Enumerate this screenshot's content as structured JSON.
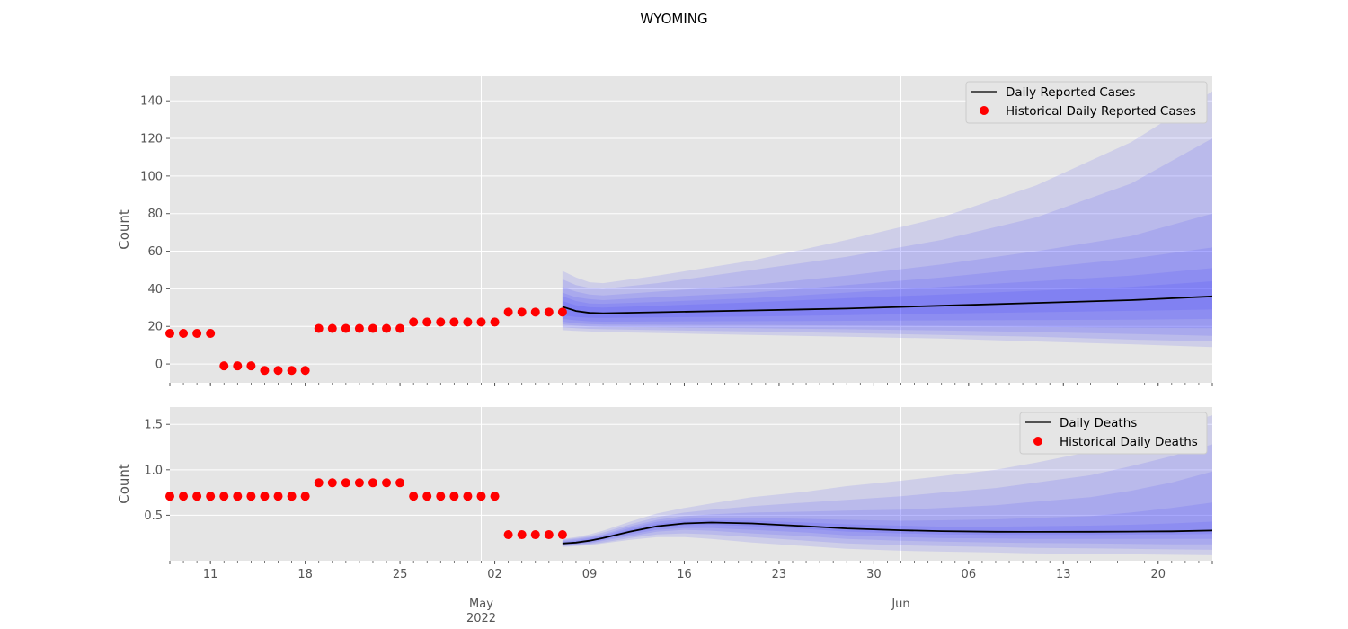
{
  "figure": {
    "title": "WYOMING"
  },
  "x_axis": {
    "start": "2022-04-08",
    "end": "2022-06-24",
    "major_ticks": [
      {
        "date": "2022-05-01",
        "label": "May",
        "sublabel": "2022"
      },
      {
        "date": "2022-06-01",
        "label": "Jun",
        "sublabel": ""
      }
    ],
    "minor_labeled_ticks": [
      {
        "date": "2022-04-11",
        "label": "11"
      },
      {
        "date": "2022-04-18",
        "label": "18"
      },
      {
        "date": "2022-04-25",
        "label": "25"
      },
      {
        "date": "2022-05-02",
        "label": "02"
      },
      {
        "date": "2022-05-09",
        "label": "09"
      },
      {
        "date": "2022-05-16",
        "label": "16"
      },
      {
        "date": "2022-05-23",
        "label": "23"
      },
      {
        "date": "2022-05-30",
        "label": "30"
      },
      {
        "date": "2022-06-06",
        "label": "06"
      },
      {
        "date": "2022-06-13",
        "label": "13"
      },
      {
        "date": "2022-06-20",
        "label": "20"
      }
    ]
  },
  "colors": {
    "panel_bg": "#e5e5e5",
    "grid": "#ffffff",
    "history": "#ff0000",
    "median": "#000000",
    "band": "#3333ff"
  },
  "chart_data": [
    {
      "type": "line",
      "ylabel": "Count",
      "ylim": [
        -10,
        153
      ],
      "yticks": [
        0,
        20,
        40,
        60,
        80,
        100,
        120,
        140
      ],
      "grid": true,
      "legend_placement": "top-right",
      "legend": [
        "Daily Reported Cases",
        "Historical Daily Reported Cases"
      ],
      "historical": {
        "name": "Historical Daily Reported Cases",
        "start": "2022-04-08",
        "values": [
          16.3,
          16.3,
          16.3,
          16.3,
          -1,
          -1,
          -1,
          -3.4,
          -3.4,
          -3.4,
          -3.4,
          18.9,
          18.9,
          18.9,
          18.9,
          18.9,
          18.9,
          18.9,
          22.3,
          22.3,
          22.3,
          22.3,
          22.3,
          22.3,
          22.3,
          27.6,
          27.6,
          27.6,
          27.6,
          27.6
        ]
      },
      "forecast": {
        "name": "Daily Reported Cases",
        "x": [
          "2022-05-07",
          "2022-05-08",
          "2022-05-09",
          "2022-05-10",
          "2022-05-14",
          "2022-05-21",
          "2022-05-28",
          "2022-06-04",
          "2022-06-11",
          "2022-06-18",
          "2022-06-24"
        ],
        "median": [
          30.5,
          28.2,
          27.2,
          27,
          27.5,
          28.5,
          29.5,
          31,
          32.5,
          34,
          36
        ],
        "bands": [
          {
            "lower": [
              18,
              17.6,
              17.3,
              17,
              16.5,
              15.5,
              14.5,
              13.5,
              12,
              10.5,
              9
            ],
            "upper": [
              49.5,
              46,
              43.5,
              43,
              47,
              55,
              66,
              78,
              95,
              118,
              145
            ]
          },
          {
            "lower": [
              19.5,
              19,
              18.7,
              18.5,
              18,
              17.3,
              16.5,
              15.5,
              14.5,
              13,
              12
            ],
            "upper": [
              45,
              42,
              40.5,
              40,
              43,
              50,
              57,
              66,
              78,
              96,
              120
            ]
          },
          {
            "lower": [
              21,
              20.4,
              20,
              19.8,
              19.5,
              19,
              18.5,
              17.8,
              17,
              16,
              15
            ],
            "upper": [
              41,
              38.5,
              37,
              36.5,
              38.5,
              42,
              47,
              53,
              60,
              68,
              80
            ]
          },
          {
            "lower": [
              22.5,
              21.6,
              21.2,
              21,
              20.9,
              20.8,
              20.5,
              20.2,
              19.8,
              19.3,
              19
            ],
            "upper": [
              38,
              35.5,
              34.5,
              34,
              35.5,
              38,
              42,
              46,
              51,
              56,
              62
            ]
          },
          {
            "lower": [
              24,
              23.2,
              22.7,
              22.5,
              22.6,
              22.8,
              23,
              23.2,
              23.4,
              23.6,
              24
            ],
            "upper": [
              36,
              33.5,
              32.2,
              32,
              33,
              35,
              38,
              41,
              44,
              47,
              51
            ]
          },
          {
            "lower": [
              26,
              25,
              24.6,
              24.5,
              24.8,
              25.3,
              26,
              26.8,
              27.5,
              28.3,
              29
            ],
            "upper": [
              33.5,
              31.2,
              30.2,
              30,
              31,
              32.8,
              35,
              37,
              39,
              41,
              44
            ]
          }
        ]
      }
    },
    {
      "type": "line",
      "ylabel": "Count",
      "ylim": [
        0,
        1.69
      ],
      "yticks": [
        0.5,
        1.0,
        1.5
      ],
      "ytick_labels": [
        "0.5",
        "1.0",
        "1.5"
      ],
      "grid": true,
      "legend_placement": "top-right",
      "legend": [
        "Daily Deaths",
        "Historical Daily Deaths"
      ],
      "historical": {
        "name": "Historical Daily Deaths",
        "start": "2022-04-08",
        "values": [
          0.71,
          0.71,
          0.71,
          0.71,
          0.71,
          0.71,
          0.71,
          0.71,
          0.71,
          0.71,
          0.71,
          0.857,
          0.857,
          0.857,
          0.857,
          0.857,
          0.857,
          0.857,
          0.71,
          0.71,
          0.71,
          0.71,
          0.71,
          0.71,
          0.71,
          0.286,
          0.286,
          0.286,
          0.286,
          0.286
        ]
      },
      "forecast": {
        "name": "Daily Deaths",
        "x": [
          "2022-05-07",
          "2022-05-08",
          "2022-05-09",
          "2022-05-10",
          "2022-05-12",
          "2022-05-14",
          "2022-05-16",
          "2022-05-18",
          "2022-05-21",
          "2022-05-25",
          "2022-05-28",
          "2022-06-01",
          "2022-06-04",
          "2022-06-08",
          "2022-06-11",
          "2022-06-15",
          "2022-06-18",
          "2022-06-21",
          "2022-06-24"
        ],
        "median": [
          0.19,
          0.2,
          0.22,
          0.25,
          0.32,
          0.38,
          0.41,
          0.42,
          0.41,
          0.38,
          0.355,
          0.335,
          0.325,
          0.318,
          0.317,
          0.318,
          0.32,
          0.323,
          0.332
        ],
        "bands": [
          {
            "lower": [
              0.15,
              0.16,
              0.17,
              0.19,
              0.23,
              0.26,
              0.26,
              0.24,
              0.2,
              0.16,
              0.13,
              0.11,
              0.1,
              0.09,
              0.08,
              0.075,
              0.07,
              0.065,
              0.06
            ],
            "upper": [
              0.24,
              0.26,
              0.29,
              0.33,
              0.43,
              0.52,
              0.58,
              0.63,
              0.7,
              0.76,
              0.82,
              0.88,
              0.93,
              1,
              1.08,
              1.2,
              1.33,
              1.47,
              1.6
            ]
          },
          {
            "lower": [
              0.16,
              0.17,
              0.18,
              0.2,
              0.25,
              0.29,
              0.3,
              0.29,
              0.26,
              0.22,
              0.19,
              0.17,
              0.16,
              0.15,
              0.14,
              0.135,
              0.13,
              0.125,
              0.12
            ],
            "upper": [
              0.23,
              0.25,
              0.27,
              0.31,
              0.4,
              0.48,
              0.53,
              0.56,
              0.6,
              0.64,
              0.67,
              0.71,
              0.75,
              0.8,
              0.86,
              0.94,
              1.04,
              1.15,
              1.28
            ]
          },
          {
            "lower": [
              0.17,
              0.18,
              0.19,
              0.22,
              0.27,
              0.32,
              0.34,
              0.33,
              0.3,
              0.27,
              0.24,
              0.22,
              0.21,
              0.2,
              0.195,
              0.19,
              0.185,
              0.18,
              0.18
            ],
            "upper": [
              0.22,
              0.24,
              0.26,
              0.29,
              0.38,
              0.45,
              0.49,
              0.51,
              0.53,
              0.54,
              0.55,
              0.56,
              0.58,
              0.61,
              0.65,
              0.7,
              0.77,
              0.86,
              0.98
            ]
          },
          {
            "lower": [
              0.175,
              0.185,
              0.2,
              0.23,
              0.29,
              0.34,
              0.36,
              0.36,
              0.34,
              0.31,
              0.28,
              0.26,
              0.25,
              0.245,
              0.24,
              0.24,
              0.24,
              0.24,
              0.24
            ],
            "upper": [
              0.21,
              0.225,
              0.25,
              0.28,
              0.36,
              0.43,
              0.46,
              0.47,
              0.47,
              0.46,
              0.45,
              0.44,
              0.445,
              0.455,
              0.47,
              0.49,
              0.53,
              0.58,
              0.64
            ]
          },
          {
            "lower": [
              0.18,
              0.19,
              0.21,
              0.24,
              0.31,
              0.36,
              0.39,
              0.395,
              0.38,
              0.35,
              0.32,
              0.3,
              0.29,
              0.285,
              0.285,
              0.285,
              0.287,
              0.29,
              0.295
            ],
            "upper": [
              0.2,
              0.215,
              0.235,
              0.265,
              0.34,
              0.405,
              0.435,
              0.445,
              0.44,
              0.42,
              0.4,
              0.385,
              0.375,
              0.375,
              0.38,
              0.385,
              0.395,
              0.41,
              0.43
            ]
          }
        ]
      }
    }
  ]
}
